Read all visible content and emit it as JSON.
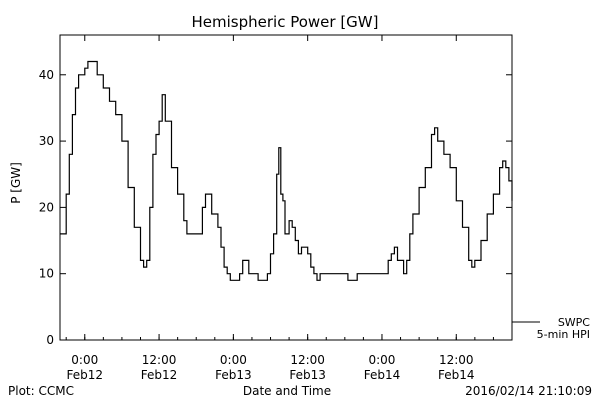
{
  "chart_data": {
    "type": "line",
    "title": "Hemispheric Power [GW]",
    "ylabel": "P [GW]",
    "xlabel": "Date and Time",
    "ylim": [
      0,
      46
    ],
    "yticks": [
      0,
      10,
      20,
      30,
      40
    ],
    "xlim": [
      "2016-02-11T20:00",
      "2016-02-14T21:00"
    ],
    "xticks": [
      {
        "t": "2016-02-12T00:00",
        "time": "0:00",
        "date": "Feb12"
      },
      {
        "t": "2016-02-12T12:00",
        "time": "12:00",
        "date": "Feb12"
      },
      {
        "t": "2016-02-13T00:00",
        "time": "0:00",
        "date": "Feb13"
      },
      {
        "t": "2016-02-13T12:00",
        "time": "12:00",
        "date": "Feb13"
      },
      {
        "t": "2016-02-14T00:00",
        "time": "0:00",
        "date": "Feb14"
      },
      {
        "t": "2016-02-14T12:00",
        "time": "12:00",
        "date": "Feb14"
      }
    ],
    "series": [
      {
        "name": "SWPC",
        "name2": "5-min HPI",
        "color": "#000000",
        "points": [
          [
            "2016-02-11T20:00",
            16
          ],
          [
            "2016-02-11T21:00",
            22
          ],
          [
            "2016-02-11T21:30",
            28
          ],
          [
            "2016-02-11T22:00",
            34
          ],
          [
            "2016-02-11T22:30",
            38
          ],
          [
            "2016-02-11T23:00",
            40
          ],
          [
            "2016-02-12T00:00",
            41
          ],
          [
            "2016-02-12T00:30",
            42
          ],
          [
            "2016-02-12T01:30",
            42
          ],
          [
            "2016-02-12T02:00",
            40
          ],
          [
            "2016-02-12T03:00",
            38
          ],
          [
            "2016-02-12T04:00",
            36
          ],
          [
            "2016-02-12T05:00",
            34
          ],
          [
            "2016-02-12T06:00",
            30
          ],
          [
            "2016-02-12T07:00",
            23
          ],
          [
            "2016-02-12T08:00",
            17
          ],
          [
            "2016-02-12T09:00",
            12
          ],
          [
            "2016-02-12T09:30",
            11
          ],
          [
            "2016-02-12T10:00",
            12
          ],
          [
            "2016-02-12T10:30",
            20
          ],
          [
            "2016-02-12T11:00",
            28
          ],
          [
            "2016-02-12T11:30",
            31
          ],
          [
            "2016-02-12T12:00",
            33
          ],
          [
            "2016-02-12T12:30",
            37
          ],
          [
            "2016-02-12T13:00",
            33
          ],
          [
            "2016-02-12T14:00",
            26
          ],
          [
            "2016-02-12T15:00",
            22
          ],
          [
            "2016-02-12T16:00",
            18
          ],
          [
            "2016-02-12T16:30",
            16
          ],
          [
            "2016-02-12T18:00",
            16
          ],
          [
            "2016-02-12T19:00",
            20
          ],
          [
            "2016-02-12T19:30",
            22
          ],
          [
            "2016-02-12T20:00",
            22
          ],
          [
            "2016-02-12T20:30",
            19
          ],
          [
            "2016-02-12T21:30",
            17
          ],
          [
            "2016-02-12T22:00",
            14
          ],
          [
            "2016-02-12T22:30",
            11
          ],
          [
            "2016-02-12T23:00",
            10
          ],
          [
            "2016-02-12T23:30",
            9
          ],
          [
            "2016-02-13T00:00",
            9
          ],
          [
            "2016-02-13T01:00",
            10
          ],
          [
            "2016-02-13T01:30",
            12
          ],
          [
            "2016-02-13T02:30",
            10
          ],
          [
            "2016-02-13T03:30",
            10
          ],
          [
            "2016-02-13T04:00",
            9
          ],
          [
            "2016-02-13T05:00",
            9
          ],
          [
            "2016-02-13T05:30",
            10
          ],
          [
            "2016-02-13T06:00",
            13
          ],
          [
            "2016-02-13T06:30",
            16
          ],
          [
            "2016-02-13T07:00",
            25
          ],
          [
            "2016-02-13T07:20",
            29
          ],
          [
            "2016-02-13T07:40",
            22
          ],
          [
            "2016-02-13T08:00",
            21
          ],
          [
            "2016-02-13T08:20",
            16
          ],
          [
            "2016-02-13T09:00",
            18
          ],
          [
            "2016-02-13T09:30",
            17
          ],
          [
            "2016-02-13T10:00",
            15
          ],
          [
            "2016-02-13T10:30",
            13
          ],
          [
            "2016-02-13T11:00",
            14
          ],
          [
            "2016-02-13T12:00",
            13
          ],
          [
            "2016-02-13T12:30",
            11
          ],
          [
            "2016-02-13T13:00",
            10
          ],
          [
            "2016-02-13T13:30",
            9
          ],
          [
            "2016-02-13T14:00",
            10
          ],
          [
            "2016-02-13T18:00",
            10
          ],
          [
            "2016-02-13T18:30",
            9
          ],
          [
            "2016-02-13T19:30",
            9
          ],
          [
            "2016-02-13T20:00",
            10
          ],
          [
            "2016-02-14T00:00",
            10
          ],
          [
            "2016-02-14T01:00",
            12
          ],
          [
            "2016-02-14T01:30",
            13
          ],
          [
            "2016-02-14T02:00",
            14
          ],
          [
            "2016-02-14T02:30",
            12
          ],
          [
            "2016-02-14T03:30",
            10
          ],
          [
            "2016-02-14T04:00",
            12
          ],
          [
            "2016-02-14T04:30",
            16
          ],
          [
            "2016-02-14T05:00",
            19
          ],
          [
            "2016-02-14T06:00",
            23
          ],
          [
            "2016-02-14T07:00",
            26
          ],
          [
            "2016-02-14T08:00",
            31
          ],
          [
            "2016-02-14T08:30",
            32
          ],
          [
            "2016-02-14T09:00",
            30
          ],
          [
            "2016-02-14T10:00",
            28
          ],
          [
            "2016-02-14T11:00",
            26
          ],
          [
            "2016-02-14T12:00",
            21
          ],
          [
            "2016-02-14T13:00",
            17
          ],
          [
            "2016-02-14T14:00",
            12
          ],
          [
            "2016-02-14T14:30",
            11
          ],
          [
            "2016-02-14T15:00",
            12
          ],
          [
            "2016-02-14T16:00",
            15
          ],
          [
            "2016-02-14T17:00",
            19
          ],
          [
            "2016-02-14T18:00",
            22
          ],
          [
            "2016-02-14T19:00",
            26
          ],
          [
            "2016-02-14T19:30",
            27
          ],
          [
            "2016-02-14T20:00",
            26
          ],
          [
            "2016-02-14T20:30",
            24
          ],
          [
            "2016-02-14T21:00",
            21
          ]
        ]
      }
    ],
    "legend_position": "bottom-right",
    "grid": false
  },
  "footer": {
    "plot_credit": "Plot: CCMC",
    "timestamp": "2016/02/14 21:10:09"
  }
}
